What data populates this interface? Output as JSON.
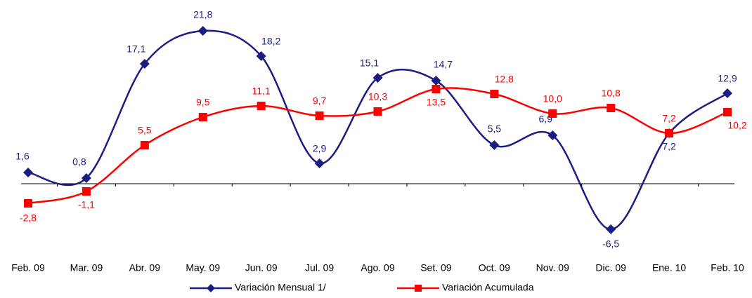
{
  "chart_data": {
    "type": "line",
    "categories": [
      "Feb. 09",
      "Mar. 09",
      "Abr. 09",
      "May. 09",
      "Jun. 09",
      "Jul. 09",
      "Ago. 09",
      "Set. 09",
      "Oct. 09",
      "Nov. 09",
      "Dic. 09",
      "Ene. 10",
      "Feb. 10"
    ],
    "series": [
      {
        "name": "Variación Mensual 1/",
        "color": "#1c1c82",
        "marker": "diamond",
        "values": [
          1.6,
          0.8,
          17.1,
          21.8,
          18.2,
          2.9,
          15.1,
          14.7,
          5.5,
          6.9,
          -6.5,
          7.2,
          12.9
        ],
        "value_labels": [
          "1,6",
          "0,8",
          "17,1",
          "21,8",
          "18,2",
          "2,9",
          "15,1",
          "14,7",
          "5,5",
          "6,9",
          "-6,5",
          "7,2",
          "12,9"
        ]
      },
      {
        "name": "Variación Acumulada",
        "color": "#ff0000",
        "marker": "square",
        "values": [
          -2.8,
          -1.1,
          5.5,
          9.5,
          11.1,
          9.7,
          10.3,
          13.5,
          12.8,
          10.0,
          10.8,
          7.2,
          10.2
        ],
        "value_labels": [
          "-2,8",
          "-1,1",
          "5,5",
          "9,5",
          "11,1",
          "9,7",
          "10,3",
          "13,5",
          "12,8",
          "10,0",
          "10,8",
          "7,2",
          "10,2"
        ]
      }
    ],
    "ylim": [
      -10,
      25
    ]
  }
}
